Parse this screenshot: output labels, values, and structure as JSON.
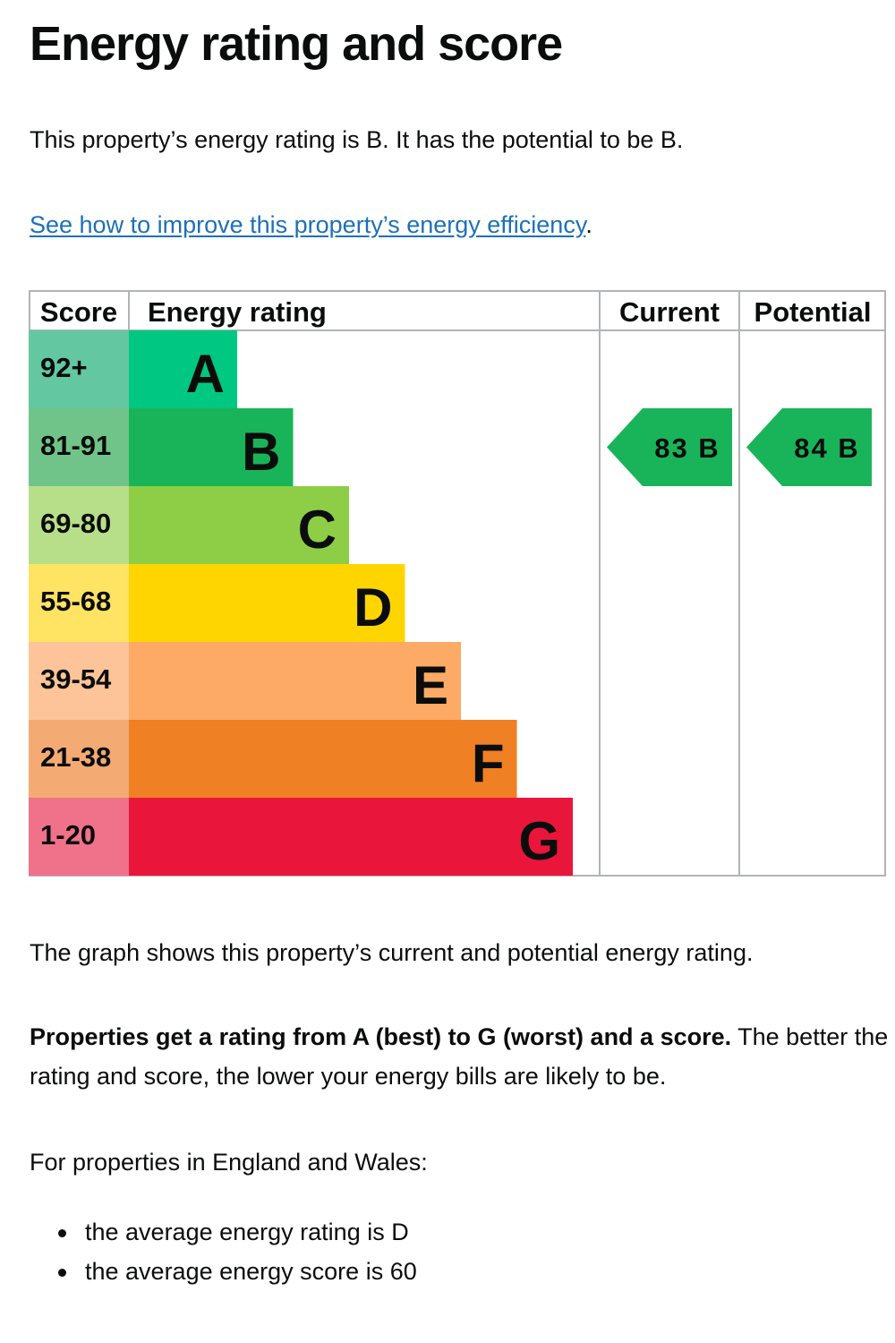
{
  "page": {
    "title": "Energy rating and score",
    "intro": "This property’s energy rating is B. It has the potential to be B.",
    "improve_link": "See how to improve this property’s energy efficiency",
    "improve_suffix": ".",
    "graph_note": "The graph shows this property’s current and potential energy rating.",
    "ratings_bold": "Properties get a rating from A (best) to G (worst) and a score.",
    "ratings_rest": " The better the rating and score, the lower your energy bills are likely to be.",
    "region_intro": "For properties in England and Wales:",
    "bullets": [
      "the average energy rating is D",
      "the average energy score is 60"
    ]
  },
  "chart_data": {
    "type": "bar",
    "headers": {
      "score": "Score",
      "rating": "Energy rating",
      "current": "Current",
      "potential": "Potential"
    },
    "bands": [
      {
        "letter": "A",
        "range": "92+",
        "color": "#00c781",
        "range_color": "#63c7a2"
      },
      {
        "letter": "B",
        "range": "81-91",
        "color": "#19b459",
        "range_color": "#71c489"
      },
      {
        "letter": "C",
        "range": "69-80",
        "color": "#8dce46",
        "range_color": "#b7df8a"
      },
      {
        "letter": "D",
        "range": "55-68",
        "color": "#ffd500",
        "range_color": "#ffe362"
      },
      {
        "letter": "E",
        "range": "39-54",
        "color": "#fcaa65",
        "range_color": "#fcc498"
      },
      {
        "letter": "F",
        "range": "21-38",
        "color": "#ef8023",
        "range_color": "#f3aa73"
      },
      {
        "letter": "G",
        "range": "1-20",
        "color": "#e9153b",
        "range_color": "#f0728a"
      }
    ],
    "current": {
      "score": 83,
      "letter": "B",
      "label": "83 B",
      "color": "#19b459"
    },
    "potential": {
      "score": 84,
      "letter": "B",
      "label": "84 B",
      "color": "#19b459"
    }
  }
}
